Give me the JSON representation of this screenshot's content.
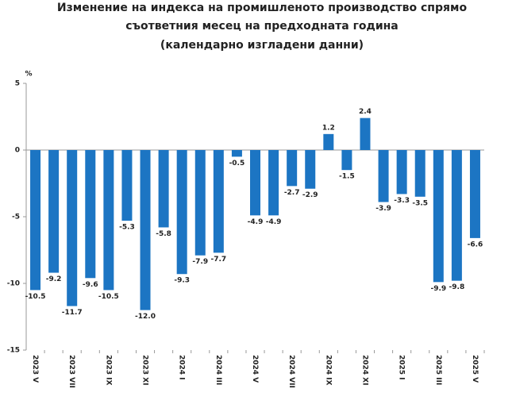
{
  "chart_data": {
    "type": "bar",
    "title": [
      "Изменение на индекса на промишленото производство спрямо",
      "съответния месец на предходната година",
      "(календарно изгладени данни)"
    ],
    "y_label": "%",
    "categories": [
      "2023 V",
      null,
      "2023 VII",
      null,
      "2023 IX",
      null,
      "2023 XI",
      null,
      "2024 I",
      null,
      "2024 III",
      null,
      "2024 V",
      null,
      "2024 VII",
      null,
      "2024 IX",
      null,
      "2024 XI",
      null,
      "2025 I",
      null,
      "2025 III",
      null,
      "2025 V"
    ],
    "values": [
      -10.5,
      -9.2,
      -11.7,
      -9.6,
      -10.5,
      -5.3,
      -12.0,
      -5.8,
      -9.3,
      -7.9,
      -7.7,
      -0.5,
      -4.9,
      -4.9,
      -2.7,
      -2.9,
      1.2,
      -1.5,
      2.4,
      -3.9,
      -3.3,
      -3.5,
      -9.9,
      -9.8,
      -6.6
    ],
    "value_labels": [
      "-10.5",
      "-9.2",
      "-11.7",
      "-9.6",
      "-10.5",
      "-5.3",
      "-12.0",
      "-5.8",
      "-9.3",
      "-7.9",
      "-7.7",
      "-0.5",
      "-4.9",
      "-4.9",
      "-2.7",
      "-2.9",
      "1.2",
      "-1.5",
      "2.4",
      "-3.9",
      "-3.3",
      "-3.5",
      "-9.9",
      "-9.8",
      "-6.6"
    ],
    "color": "#1c75c3",
    "ylim": [
      -15,
      5
    ],
    "yticks": [
      -15,
      -10,
      -5,
      0,
      5
    ],
    "grid": false
  }
}
